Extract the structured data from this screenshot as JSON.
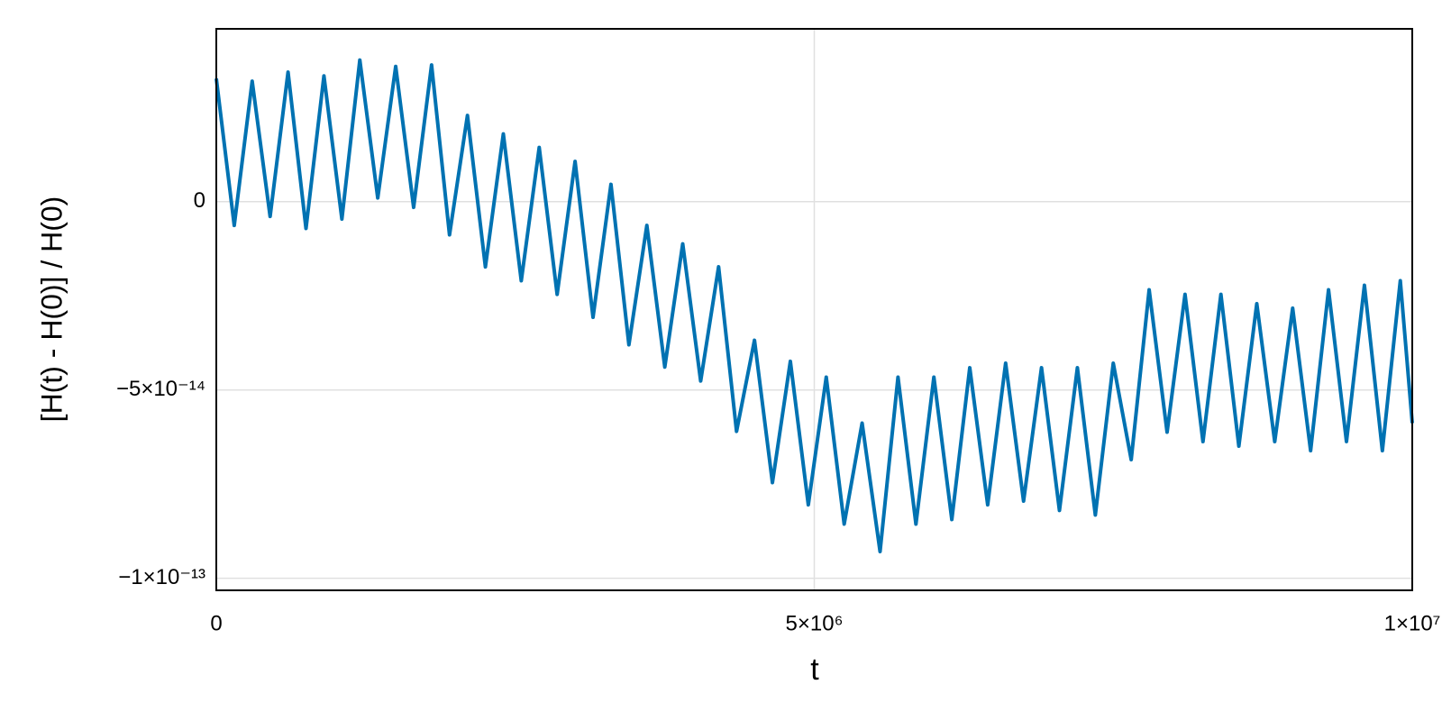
{
  "chart_data": {
    "type": "line",
    "x_label": "t",
    "y_label": "[H(t) - H(0)] / H(0)",
    "xlim": [
      0,
      10000000
    ],
    "xticks": [
      0,
      {
        "value": 5000000,
        "label": "5×10⁶"
      },
      {
        "value": 10000000,
        "label": "1×10⁷"
      }
    ],
    "ylim": [
      -1.032e-13,
      4.59e-14
    ],
    "yticks": [
      {
        "value": -1e-13,
        "label": "−1×10⁻¹³"
      },
      {
        "value": -5e-14,
        "label": "−5×10⁻¹⁴"
      },
      0
    ],
    "grid": true,
    "series": [
      {
        "color": "#0072b2",
        "x": [
          0,
          150000,
          300000,
          450000,
          600000,
          750000,
          900000,
          1050000,
          1200000,
          1350000,
          1500000,
          1650000,
          1800000,
          1950000,
          2100000,
          2250000,
          2400000,
          2550000,
          2700000,
          2850000,
          3000000,
          3150000,
          3300000,
          3450000,
          3600000,
          3750000,
          3900000,
          4050000,
          4200000,
          4350000,
          4500000,
          4650000,
          4800000,
          4950000,
          5100000,
          5250000,
          5400000,
          5550000,
          5700000,
          5850000,
          6000000,
          6150000,
          6300000,
          6450000,
          6600000,
          6750000,
          6900000,
          7050000,
          7200000,
          7350000,
          7500000,
          7650000,
          7800000,
          7950000,
          8100000,
          8250000,
          8400000,
          8550000,
          8700000,
          8850000,
          9000000,
          9150000,
          9300000,
          9450000,
          9600000,
          9750000,
          9900000,
          10000000
        ],
        "values": [
          3.27e-14,
          -6.3e-15,
          3.2e-14,
          -3.9e-15,
          3.44e-14,
          -7.1e-15,
          3.34e-14,
          -4.6e-15,
          3.76e-14,
          1e-15,
          3.59e-14,
          -1.5e-15,
          3.63e-14,
          -8.8e-15,
          2.29e-14,
          -1.73e-14,
          1.8e-14,
          -2.1e-14,
          1.44e-14,
          -2.46e-14,
          1.07e-14,
          -3.07e-14,
          4.6e-15,
          -3.8e-14,
          -6.3e-15,
          -4.39e-14,
          -1.12e-14,
          -4.76e-14,
          -1.73e-14,
          -6.1e-14,
          -3.68e-14,
          -7.46e-14,
          -4.24e-14,
          -8.05e-14,
          -4.66e-14,
          -8.56e-14,
          -5.88e-14,
          -9.29e-14,
          -4.66e-14,
          -8.56e-14,
          -4.66e-14,
          -8.44e-14,
          -4.41e-14,
          -8.05e-14,
          -4.29e-14,
          -7.95e-14,
          -4.41e-14,
          -8.2e-14,
          -4.41e-14,
          -8.32e-14,
          -4.29e-14,
          -6.85e-14,
          -2.34e-14,
          -6.12e-14,
          -2.46e-14,
          -6.37e-14,
          -2.46e-14,
          -6.49e-14,
          -2.71e-14,
          -6.37e-14,
          -2.83e-14,
          -6.61e-14,
          -2.34e-14,
          -6.37e-14,
          -2.22e-14,
          -6.61e-14,
          -2.1e-14,
          -5.88e-14
        ]
      }
    ]
  }
}
